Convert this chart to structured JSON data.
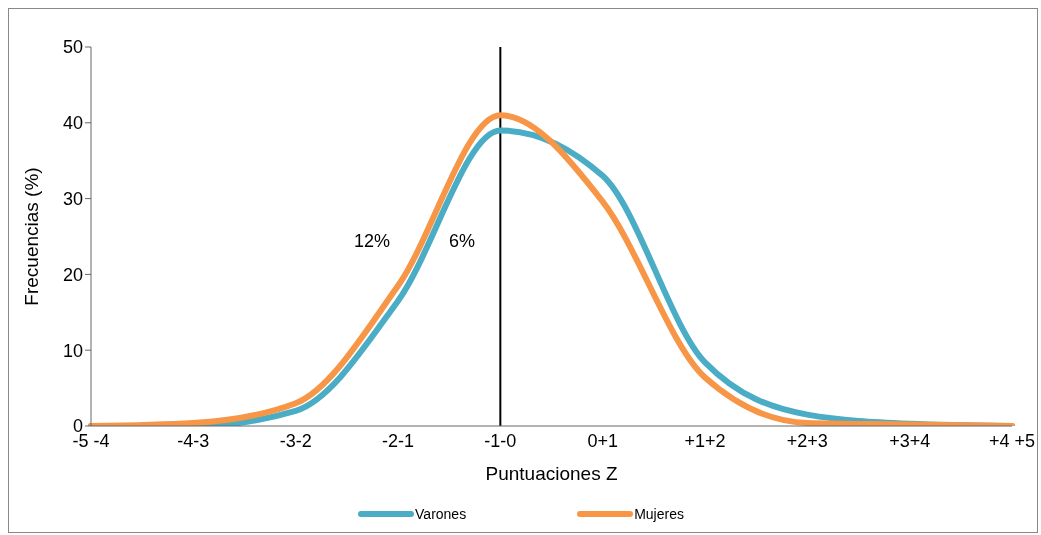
{
  "chart_data": {
    "type": "line",
    "xlabel": "Puntuaciones Z",
    "ylabel": "Frecuencias (%)",
    "categories": [
      "-5 -4",
      "-4-3",
      "-3-2",
      "-2-1",
      "-1-0",
      "0+1",
      "+1+2",
      "+2+3",
      "+3+4",
      "+4 +5"
    ],
    "ylim": [
      0,
      50
    ],
    "yticks": [
      0,
      10,
      20,
      30,
      40,
      50
    ],
    "series": [
      {
        "name": "Varones",
        "color": "#4bacc6",
        "values": [
          0,
          0,
          2.0,
          16.5,
          39.0,
          33.0,
          8.4,
          1.5,
          0.3,
          0
        ]
      },
      {
        "name": "Mujeres",
        "color": "#f79646",
        "values": [
          0,
          0.4,
          3.0,
          18.5,
          41.0,
          29.6,
          6.4,
          0.4,
          0.2,
          0
        ]
      }
    ],
    "ref_lines": [
      {
        "axis": "x",
        "value": "-1-0",
        "color": "#000000"
      }
    ],
    "annotations": [
      "12%",
      "6%"
    ],
    "grid": false,
    "legend": "bottom",
    "marker": "none",
    "line_style": "solid"
  }
}
